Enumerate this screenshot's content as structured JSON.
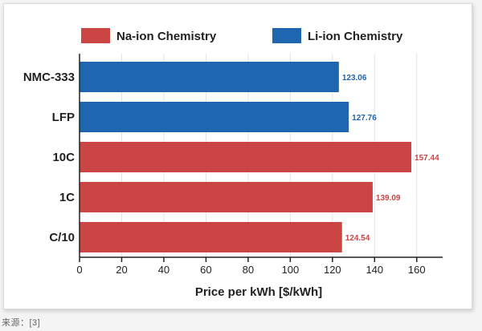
{
  "source_note": "来源：[3]",
  "colors": {
    "na_ion": "#cc4545",
    "li_ion": "#1f66b1",
    "axis": "#222222",
    "grid": "#e3e3e3"
  },
  "chart_data": {
    "type": "bar",
    "orientation": "horizontal",
    "categories": [
      "NMC-333",
      "LFP",
      "10C",
      "1C",
      "C/10"
    ],
    "values": [
      123.06,
      127.76,
      157.44,
      139.09,
      124.54
    ],
    "value_labels": [
      "123.06",
      "127.76",
      "157.44",
      "139.09",
      "124.54"
    ],
    "chemistry": [
      "Li-ion Chemistry",
      "Li-ion Chemistry",
      "Na-ion Chemistry",
      "Na-ion Chemistry",
      "Na-ion Chemistry"
    ],
    "legend": [
      {
        "name": "Na-ion Chemistry",
        "color": "#cc4545"
      },
      {
        "name": "Li-ion Chemistry",
        "color": "#1f66b1"
      }
    ],
    "title": "",
    "xlabel": "Price per kWh [$/kWh]",
    "ylabel": "",
    "xlim": [
      0,
      170
    ],
    "xticks": [
      0,
      20,
      40,
      60,
      80,
      100,
      120,
      140,
      160
    ],
    "legend_position": "top",
    "grid": true
  }
}
